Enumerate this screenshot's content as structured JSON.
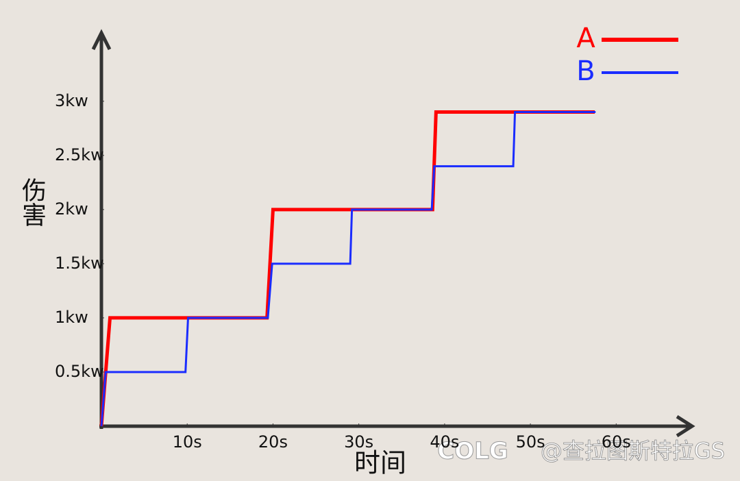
{
  "chart_data": {
    "type": "line",
    "x_label": "时间",
    "y_label": "伤害",
    "xlim": [
      0,
      69
    ],
    "ylim": [
      0,
      3.65
    ],
    "xticks": [
      {
        "value": 10,
        "label": "10s"
      },
      {
        "value": 20,
        "label": "20s"
      },
      {
        "value": 30,
        "label": "30s"
      },
      {
        "value": 40,
        "label": "40s"
      },
      {
        "value": 50,
        "label": "50s"
      },
      {
        "value": 60,
        "label": "60s"
      }
    ],
    "yticks": [
      {
        "value": 0.5,
        "label": "0.5kw"
      },
      {
        "value": 1,
        "label": "1kw"
      },
      {
        "value": 1.5,
        "label": "1.5kw"
      },
      {
        "value": 2,
        "label": "2kw"
      },
      {
        "value": 2.5,
        "label": "2.5kw"
      },
      {
        "value": 3,
        "label": "3kw"
      }
    ],
    "legend": "top-right",
    "series": [
      {
        "name": "A",
        "color": "#ff0000",
        "width": 5,
        "x": [
          0,
          1,
          19.3,
          20,
          38.6,
          39,
          57.5
        ],
        "values": [
          0,
          1,
          1,
          2,
          2,
          2.9,
          2.9
        ]
      },
      {
        "name": "B",
        "color": "#1a2cff",
        "width": 3,
        "x": [
          0,
          0.5,
          9.8,
          10.1,
          19.4,
          19.9,
          29,
          29.2,
          38.5,
          38.8,
          48,
          48.2,
          57.6
        ],
        "values": [
          0,
          0.5,
          0.5,
          1,
          1,
          1.5,
          1.5,
          2,
          2,
          2.4,
          2.4,
          2.9,
          2.9
        ]
      }
    ],
    "logo": "COLG",
    "watermark": "@查拉图斯特拉GS"
  }
}
